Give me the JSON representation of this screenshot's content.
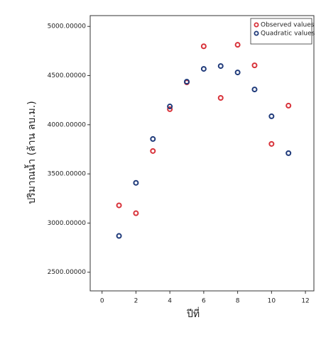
{
  "chart_data": {
    "type": "scatter",
    "x_label": "ปีที่",
    "y_label": "ปริมาณน้ำ (ล้าน ลบ.ม.)",
    "x": [
      1,
      2,
      3,
      4,
      5,
      6,
      7,
      8,
      9,
      10,
      11
    ],
    "series": [
      {
        "name": "Observed values",
        "color": "#d8323a",
        "values": [
          3180,
          3100,
          3733,
          4158,
          4431,
          4798,
          4273,
          4813,
          4604,
          3805,
          4194
        ]
      },
      {
        "name": "Quadratic values",
        "color": "#1f3a7a",
        "values": [
          2869,
          3409,
          3855,
          4186,
          4438,
          4568,
          4597,
          4532,
          4359,
          4086,
          3711
        ]
      }
    ],
    "xlim": [
      -0.7,
      12.5
    ],
    "ylim": [
      2310,
      5110
    ],
    "xticks": [
      0,
      2,
      4,
      6,
      8,
      10,
      12
    ],
    "yticks": [
      {
        "value": 2500,
        "label": "2500.00000"
      },
      {
        "value": 3000,
        "label": "3000.00000"
      },
      {
        "value": 3500,
        "label": "3500.00000"
      },
      {
        "value": 4000,
        "label": "4000.00000"
      },
      {
        "value": 4500,
        "label": "4500.00000"
      },
      {
        "value": 5000,
        "label": "5000.00000"
      }
    ],
    "grid": false,
    "legend": "upper right"
  }
}
